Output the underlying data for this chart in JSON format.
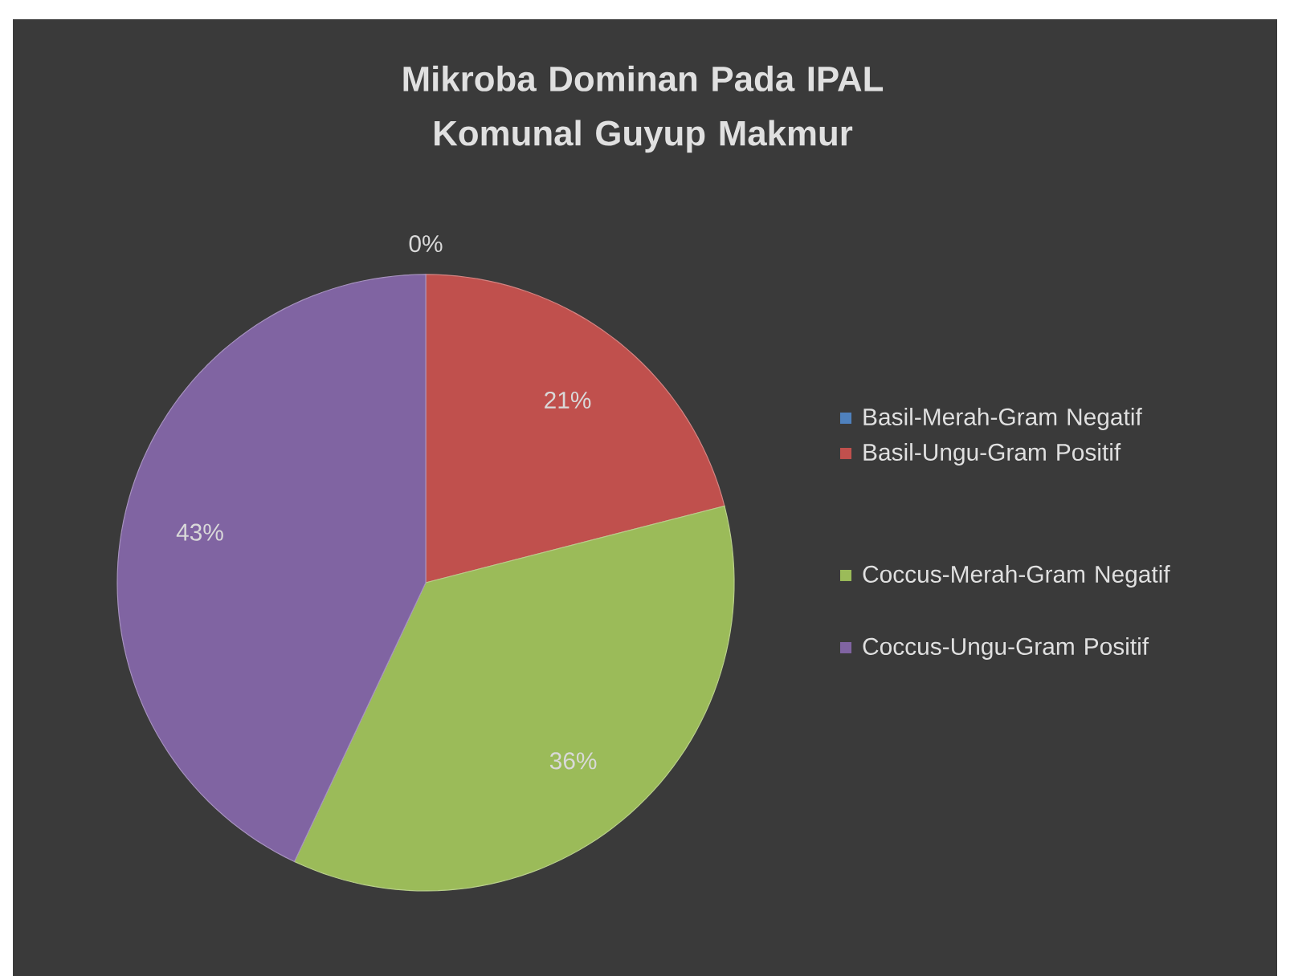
{
  "chart_data": {
    "type": "pie",
    "title": "Mikroba Dominan Pada IPAL Komunal Guyup Makmur",
    "categories": [
      "Basil-Merah-Gram Negatif",
      "Basil-Ungu-Gram Positif",
      "Coccus-Merah-Gram Negatif",
      "Coccus-Ungu-Gram Positif"
    ],
    "values": [
      0,
      21,
      36,
      43
    ],
    "value_labels": [
      "0%",
      "21%",
      "36%",
      "43%"
    ],
    "colors": [
      "#4f81bd",
      "#c0504d",
      "#9bbb59",
      "#8064a2"
    ],
    "legend": "right"
  }
}
